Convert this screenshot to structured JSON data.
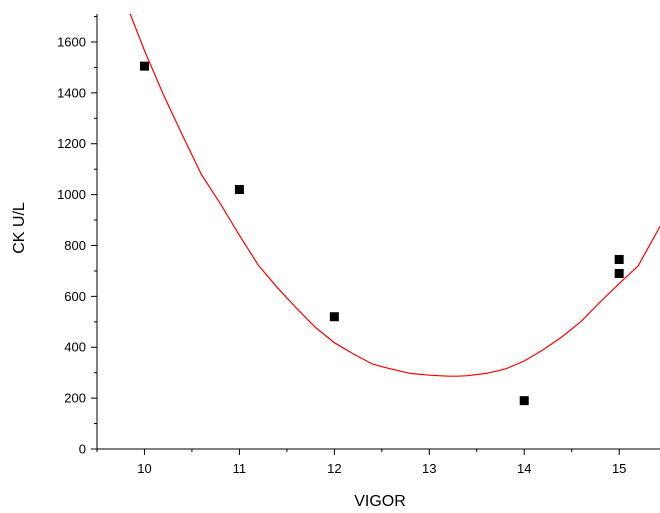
{
  "chart_data": {
    "type": "scatter",
    "xlabel": "VIGOR",
    "ylabel": "CK U/L",
    "xlim": [
      9.5,
      15.43
    ],
    "ylim": [
      0,
      1710
    ],
    "x_ticks": [
      10,
      11,
      12,
      13,
      14,
      15
    ],
    "y_ticks": [
      0,
      200,
      400,
      600,
      800,
      1000,
      1200,
      1400,
      1600
    ],
    "grid": false,
    "legend": "none",
    "colors": {
      "points": "#000000",
      "fit": "#ff0000",
      "axes": "#000000"
    },
    "series": [
      {
        "style": "markers",
        "x": [
          10,
          11,
          12,
          14,
          15,
          15
        ],
        "y": [
          1505,
          1020,
          520,
          190,
          745,
          690
        ]
      },
      {
        "style": "line",
        "x": [
          9.85,
          10.0,
          10.2,
          10.4,
          10.6,
          10.8,
          11.0,
          11.2,
          11.4,
          11.6,
          11.8,
          12.0,
          12.2,
          12.4,
          12.6,
          12.8,
          13.0,
          13.2,
          13.3,
          13.4,
          13.6,
          13.8,
          14.0,
          14.2,
          14.4,
          14.6,
          14.8,
          15.0,
          15.2,
          15.43
        ],
        "y": [
          1710,
          1566,
          1392,
          1234,
          1079,
          964,
          840,
          722,
          634,
          554,
          478,
          418,
          374,
          334,
          314,
          297,
          290,
          286,
          286,
          288,
          297,
          314,
          346,
          390,
          442,
          502,
          578,
          650,
          720,
          875
        ]
      }
    ]
  }
}
